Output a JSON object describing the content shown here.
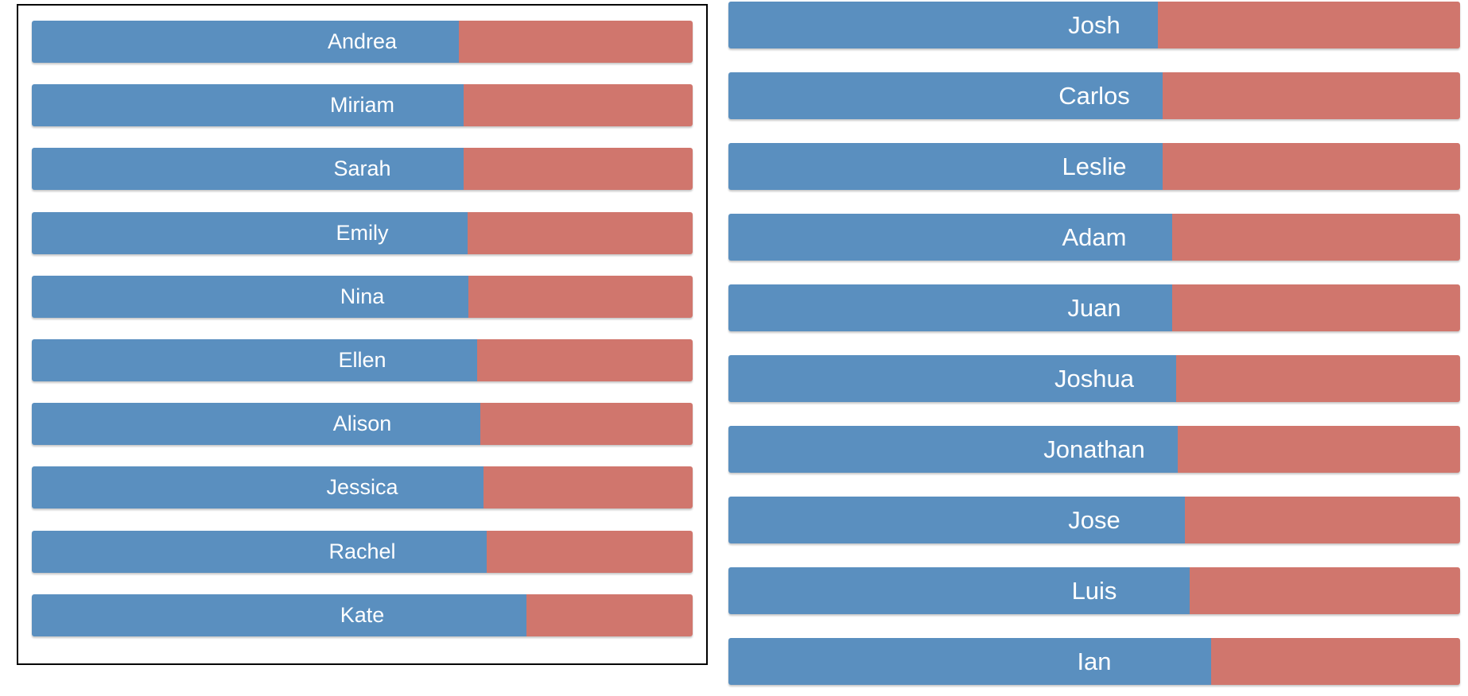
{
  "colors": {
    "blue": "#5a8fbf",
    "red": "#d0766d",
    "label": "#ffffff",
    "border": "#000000"
  },
  "chart_data": [
    {
      "type": "bar",
      "orientation": "horizontal-stacked-100",
      "categories": [
        "Andrea",
        "Miriam",
        "Sarah",
        "Emily",
        "Nina",
        "Ellen",
        "Alison",
        "Jessica",
        "Rachel",
        "Kate"
      ],
      "series": [
        {
          "color": "#5a8fbf",
          "values": [
            0.646,
            0.654,
            0.654,
            0.66,
            0.661,
            0.674,
            0.679,
            0.684,
            0.688,
            0.748
          ]
        },
        {
          "color": "#d0766d",
          "values": [
            0.354,
            0.346,
            0.346,
            0.34,
            0.339,
            0.326,
            0.321,
            0.316,
            0.312,
            0.252
          ]
        }
      ],
      "xlim": [
        0,
        1
      ],
      "grid": false
    },
    {
      "type": "bar",
      "orientation": "horizontal-stacked-100",
      "categories": [
        "Josh",
        "Carlos",
        "Leslie",
        "Adam",
        "Juan",
        "Joshua",
        "Jonathan",
        "Jose",
        "Luis",
        "Ian"
      ],
      "series": [
        {
          "color": "#5a8fbf",
          "values": [
            0.587,
            0.593,
            0.593,
            0.606,
            0.607,
            0.612,
            0.614,
            0.624,
            0.63,
            0.66
          ]
        },
        {
          "color": "#d0766d",
          "values": [
            0.413,
            0.407,
            0.407,
            0.394,
            0.393,
            0.388,
            0.386,
            0.376,
            0.37,
            0.34
          ]
        }
      ],
      "xlim": [
        0,
        1
      ],
      "grid": false
    }
  ]
}
